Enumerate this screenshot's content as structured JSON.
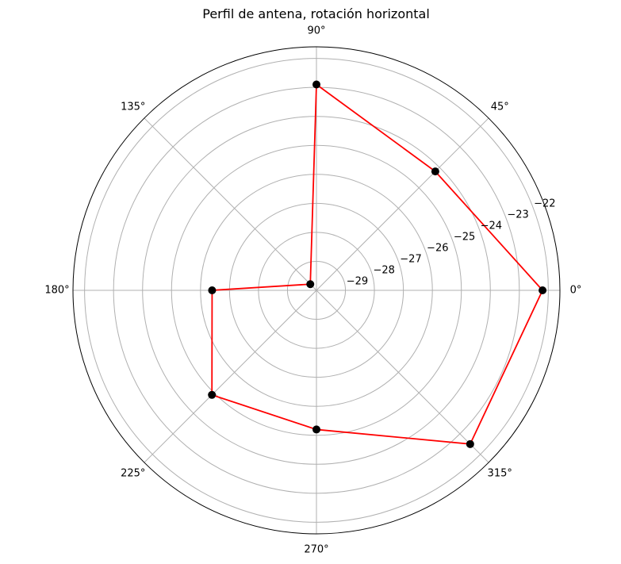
{
  "chart_data": {
    "type": "polar-line",
    "title": "Perfil de antena, rotación horizontal",
    "theta_labels": [
      "0°",
      "45°",
      "90°",
      "135°",
      "180°",
      "225°",
      "270°",
      "315°"
    ],
    "theta_deg": [
      0,
      45,
      90,
      135,
      180,
      225,
      270,
      315
    ],
    "r_ticks": [
      -29,
      -28,
      -27,
      -26,
      -25,
      -24,
      -23,
      -22
    ],
    "r_tick_labels": [
      "−29",
      "−28",
      "−27",
      "−26",
      "−25",
      "−24",
      "−23",
      "−22"
    ],
    "r_tick_label_angle_deg": 22.5,
    "rlim": [
      -30,
      -21.6
    ],
    "grid": true,
    "series": [
      {
        "theta_deg": [
          0,
          45,
          90,
          135,
          180,
          225,
          270,
          315
        ],
        "r": [
          -22.2,
          -24.2,
          -22.9,
          -29.7,
          -26.4,
          -24.9,
          -25.2,
          -22.5
        ],
        "line_color": "#ff0000",
        "marker_color": "#000000",
        "marker": "circle"
      }
    ]
  }
}
